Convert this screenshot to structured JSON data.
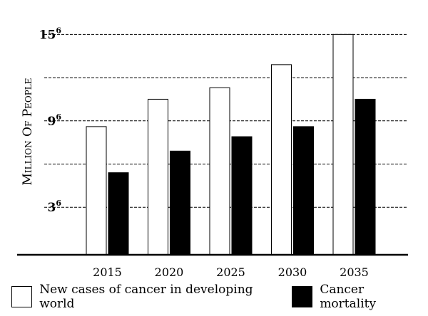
{
  "chart_data": {
    "type": "bar",
    "categories": [
      "2015",
      "2020",
      "2025",
      "2030",
      "2035"
    ],
    "series": [
      {
        "name": "New cases of cancer in developing world",
        "values": [
          8.6,
          10.5,
          11.3,
          12.9,
          15.0
        ],
        "color": "#ffffff"
      },
      {
        "name": "Cancer mortality",
        "values": [
          5.4,
          6.9,
          7.9,
          8.6,
          10.5
        ],
        "color": "#000000"
      }
    ],
    "ylabel": "Million Of People",
    "ylim": [
      -0.3,
      16.5
    ],
    "yticks": [
      {
        "value": 15,
        "label": "15",
        "exp": "6"
      },
      {
        "value": 9,
        "label": "9",
        "exp": "6"
      },
      {
        "value": 3,
        "label": "3",
        "exp": "6"
      }
    ],
    "grid_lines": [
      3,
      6,
      9,
      12,
      15
    ],
    "grid": "dashed horizontal",
    "legend_position": "bottom"
  },
  "legend": {
    "items": [
      {
        "label": "New cases of cancer in developing world",
        "color": "#ffffff"
      },
      {
        "label": "Cancer mortality",
        "color": "#000000"
      }
    ]
  }
}
